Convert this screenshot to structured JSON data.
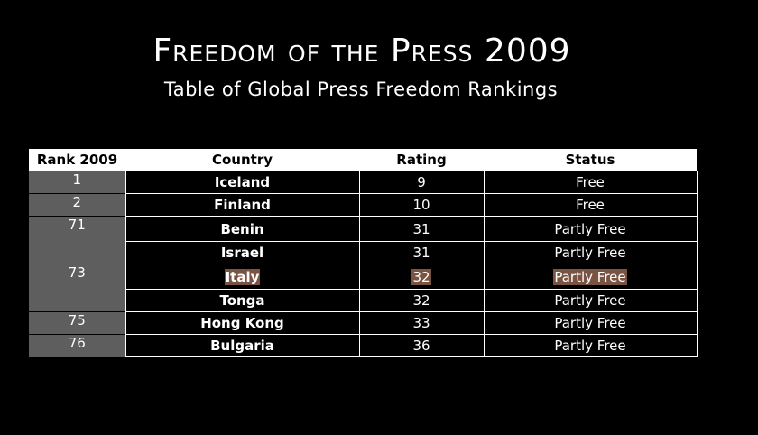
{
  "title": "Freedom of the Press 2009",
  "subtitle": "Table of Global Press Freedom Rankings",
  "table": {
    "headers": {
      "rank": "Rank 2009",
      "country": "Country",
      "rating": "Rating",
      "status": "Status"
    },
    "rows": [
      {
        "rank": "1",
        "country": "Iceland",
        "rating": "9",
        "status": "Free"
      },
      {
        "rank": "2",
        "country": "Finland",
        "rating": "10",
        "status": "Free"
      },
      {
        "rank": "71",
        "country": "Benin",
        "rating": "31",
        "status": "Partly Free"
      },
      {
        "rank": "",
        "country": "Israel",
        "rating": "31",
        "status": "Partly Free"
      },
      {
        "rank": "73",
        "country": "Italy",
        "rating": "32",
        "status": "Partly Free"
      },
      {
        "rank": "",
        "country": "Tonga",
        "rating": "32",
        "status": "Partly Free"
      },
      {
        "rank": "75",
        "country": "Hong Kong",
        "rating": "33",
        "status": "Partly Free"
      },
      {
        "rank": "76",
        "country": "Bulgaria",
        "rating": "36",
        "status": "Partly Free"
      }
    ]
  },
  "colors": {
    "background": "#000000",
    "rank_cell": "#5e5e5e",
    "highlight": "#7a5442"
  }
}
